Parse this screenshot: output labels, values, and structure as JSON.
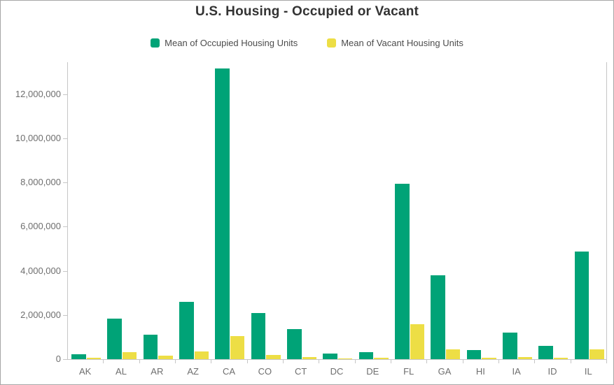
{
  "title": "U.S. Housing - Occupied or Vacant",
  "legend": {
    "items": [
      {
        "key": "occupied",
        "label": "Mean of Occupied Housing Units",
        "color": "#00a377"
      },
      {
        "key": "vacant",
        "label": "Mean of Vacant Housing Units",
        "color": "#edde45"
      }
    ]
  },
  "colors": {
    "occupied": "#00a377",
    "vacant": "#edde45",
    "title_text": "#333333",
    "axis_text": "#6e6e6e",
    "legend_text": "#4c4c4c",
    "axis_line": "#c6c6c6",
    "frame_border": "#a6a6a6"
  },
  "chart_data": {
    "type": "bar",
    "title": "U.S. Housing - Occupied or Vacant",
    "xlabel": "",
    "ylabel": "",
    "grid": false,
    "legend_position": "top",
    "categories": [
      "AK",
      "AL",
      "AR",
      "AZ",
      "CA",
      "CO",
      "CT",
      "DC",
      "DE",
      "FL",
      "GA",
      "HI",
      "IA",
      "ID",
      "IL"
    ],
    "series": [
      {
        "name": "Mean of Occupied Housing Units",
        "key": "occupied",
        "color": "#00a377",
        "values": [
          220000,
          1850000,
          1120000,
          2590000,
          13150000,
          2090000,
          1350000,
          240000,
          330000,
          7930000,
          3800000,
          410000,
          1210000,
          600000,
          4880000
        ]
      },
      {
        "name": "Mean of Vacant Housing Units",
        "key": "vacant",
        "color": "#edde45",
        "values": [
          55000,
          330000,
          150000,
          350000,
          1060000,
          190000,
          105000,
          30000,
          55000,
          1590000,
          450000,
          55000,
          105000,
          60000,
          450000
        ]
      }
    ],
    "ylim": [
      0,
      13450000
    ],
    "ytick_step": 2000000,
    "ytick_values": [
      0,
      2000000,
      4000000,
      6000000,
      8000000,
      10000000,
      12000000
    ],
    "ytick_labels": [
      "0",
      "2,000,000",
      "4,000,000",
      "6,000,000",
      "8,000,000",
      "10,000,000",
      "12,000,000"
    ]
  }
}
